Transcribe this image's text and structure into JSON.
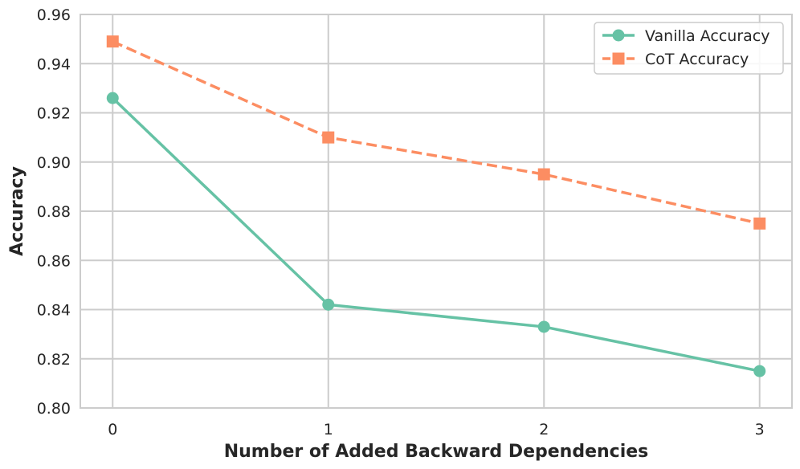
{
  "chart_data": {
    "type": "line",
    "title": "",
    "xlabel": "Number of Added Backward Dependencies",
    "ylabel": "Accuracy",
    "x": [
      0,
      1,
      2,
      3
    ],
    "x_tick_labels": [
      "0",
      "1",
      "2",
      "3"
    ],
    "xlim": [
      -0.15,
      3.15
    ],
    "ylim": [
      0.8,
      0.96
    ],
    "y_ticks": [
      0.8,
      0.82,
      0.84,
      0.86,
      0.88,
      0.9,
      0.92,
      0.94,
      0.96
    ],
    "y_tick_labels": [
      "0.80",
      "0.82",
      "0.84",
      "0.86",
      "0.88",
      "0.90",
      "0.92",
      "0.94",
      "0.96"
    ],
    "grid": true,
    "legend_position": "top-right",
    "series": [
      {
        "name": "Vanilla Accuracy",
        "values": [
          0.926,
          0.842,
          0.833,
          0.815
        ],
        "color": "#66c2a5",
        "marker": "circle",
        "line_style": "solid"
      },
      {
        "name": "CoT Accuracy",
        "values": [
          0.949,
          0.91,
          0.895,
          0.875
        ],
        "color": "#fc8d62",
        "marker": "square",
        "line_style": "dashed"
      }
    ]
  }
}
